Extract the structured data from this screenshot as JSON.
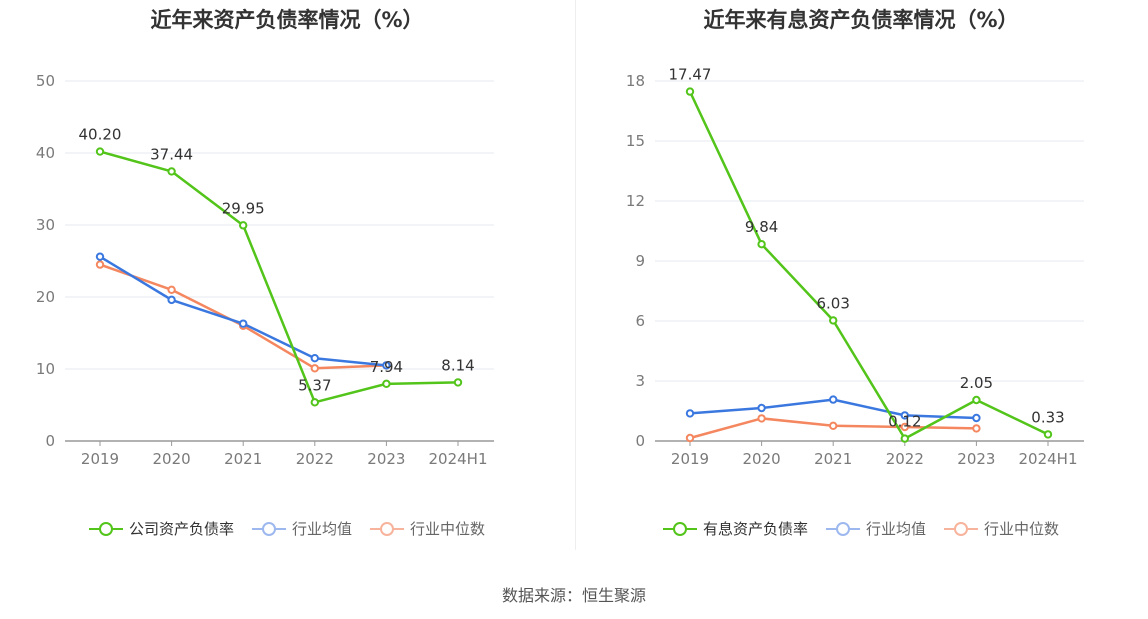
{
  "source": "数据来源：恒生聚源",
  "chart_data": [
    {
      "type": "line",
      "title": "近年来资产负债率情况（%）",
      "categories": [
        "2019",
        "2020",
        "2021",
        "2022",
        "2023",
        "2024H1"
      ],
      "ylim": [
        0,
        50
      ],
      "yticks": [
        0,
        10,
        20,
        30,
        40,
        50
      ],
      "series": [
        {
          "name": "公司资产负债率",
          "color": "#52c41a",
          "values": [
            40.2,
            37.44,
            29.95,
            5.37,
            7.94,
            8.14
          ],
          "labels": [
            "40.20",
            "37.44",
            "29.95",
            "5.37",
            "7.94",
            "8.14"
          ]
        },
        {
          "name": "行业均值",
          "color": "#3a78e0",
          "values": [
            25.6,
            19.6,
            16.3,
            11.5,
            10.5,
            null
          ]
        },
        {
          "name": "行业中位数",
          "color": "#f4875f",
          "values": [
            24.5,
            21.0,
            16.0,
            10.1,
            10.5,
            null
          ]
        }
      ]
    },
    {
      "type": "line",
      "title": "近年来有息资产负债率情况（%）",
      "categories": [
        "2019",
        "2020",
        "2021",
        "2022",
        "2023",
        "2024H1"
      ],
      "ylim": [
        0,
        18
      ],
      "yticks": [
        0,
        3,
        6,
        9,
        12,
        15,
        18
      ],
      "series": [
        {
          "name": "有息资产负债率",
          "color": "#52c41a",
          "values": [
            17.47,
            9.84,
            6.03,
            0.12,
            2.05,
            0.33
          ],
          "labels": [
            "17.47",
            "9.84",
            "6.03",
            "0.12",
            "2.05",
            "0.33"
          ]
        },
        {
          "name": "行业均值",
          "color": "#3a78e0",
          "values": [
            1.38,
            1.65,
            2.07,
            1.28,
            1.15,
            null
          ]
        },
        {
          "name": "行业中位数",
          "color": "#f4875f",
          "values": [
            0.15,
            1.13,
            0.76,
            0.7,
            0.63,
            null
          ]
        }
      ]
    }
  ]
}
